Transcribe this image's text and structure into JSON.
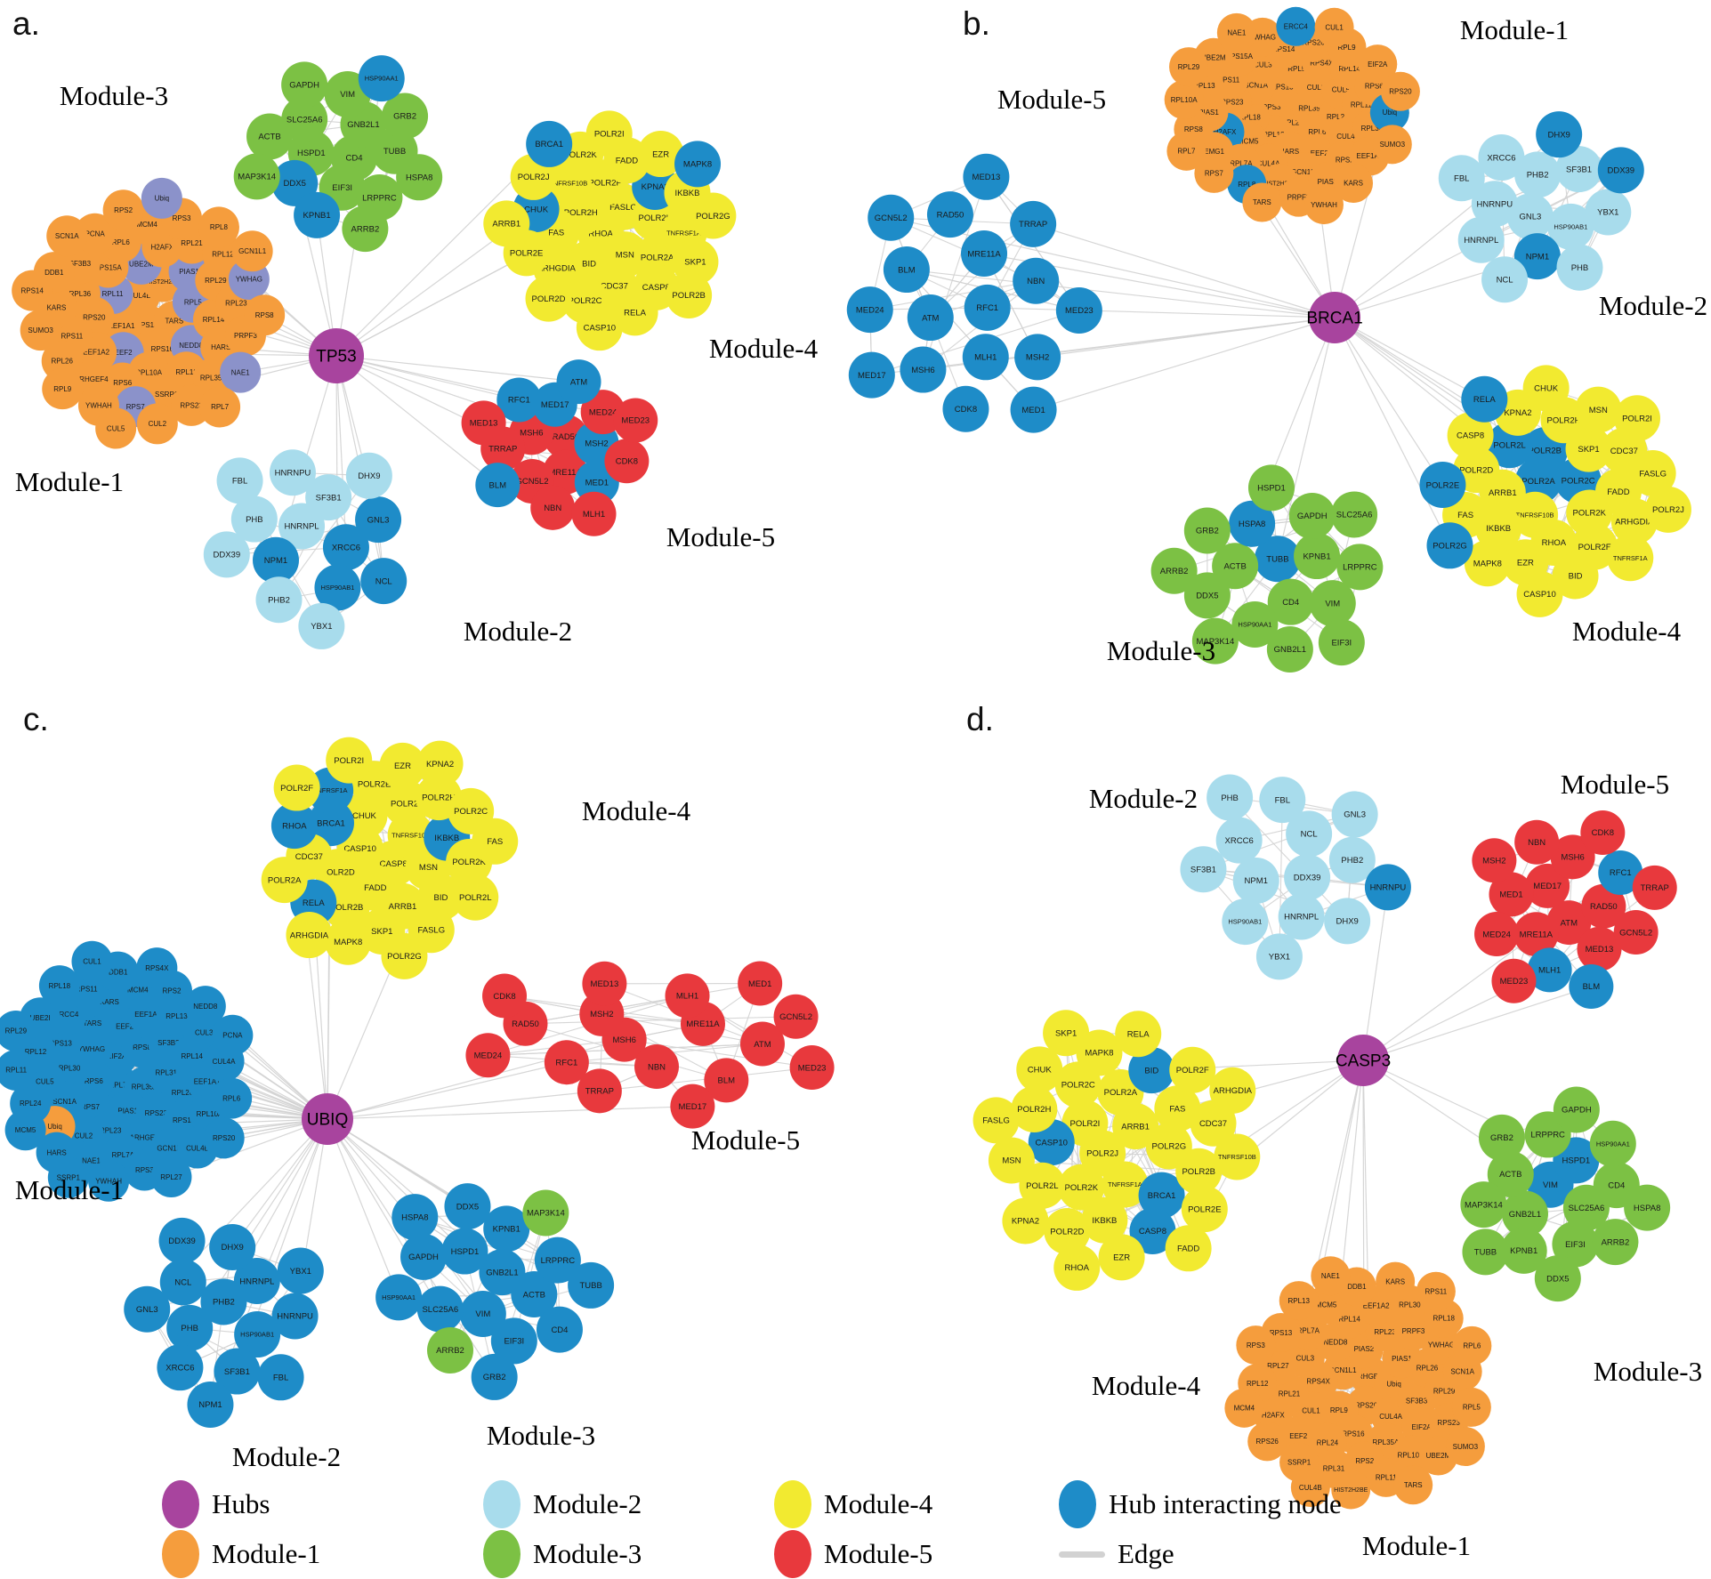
{
  "figure_title": "Hub gene interaction network modules",
  "colors": {
    "hub": "#a8449e",
    "module1": "#f59d3d",
    "module2": "#a8dcec",
    "module3": "#7cc144",
    "module4": "#f2ea30",
    "module5": "#e8393d",
    "hub_interacting": "#1e8cc8",
    "slate": "#8b92ca",
    "edge": "#d2d2d2"
  },
  "legend": {
    "items": [
      {
        "label": "Hubs",
        "key": "hub"
      },
      {
        "label": "Module-1",
        "key": "module1"
      },
      {
        "label": "Module-2",
        "key": "module2"
      },
      {
        "label": "Module-3",
        "key": "module3"
      },
      {
        "label": "Module-4",
        "key": "module4"
      },
      {
        "label": "Module-5",
        "key": "module5"
      },
      {
        "label": "Hub interacting node",
        "key": "hub_interacting"
      },
      {
        "label": "Edge",
        "key": "edge"
      }
    ]
  },
  "panels": {
    "a": {
      "letter": "a.",
      "hub": "TP53",
      "modules": [
        {
          "id": "module-3",
          "label": "Module-3",
          "color": "module3",
          "nodes": [
            "CD4",
            "HSPD1",
            "GNB2L1",
            "EIF3I",
            "SLC25A6",
            "TUBB",
            "DDX5|hub_interacting",
            "VIM",
            "LRPPRC",
            "ACTB",
            "GRB2",
            "KPNB1|hub_interacting",
            "GAPDH",
            "HSPA8",
            "MAP3K14",
            "HSP90AA1|hub_interacting",
            "ARRB2"
          ]
        },
        {
          "id": "module-1",
          "label": "Module-1",
          "color": "module1",
          "nodes": [
            "RPS13",
            "CUL4B",
            "TARS",
            "EEF1A1",
            "HIST2H2BE",
            "RPS16",
            "RPL11|slate",
            "RPL5|slate",
            "EEF2|slate",
            "UBE2M|slate",
            "NEDD8|slate",
            "RPS20",
            "PIAS1|slate",
            "RPL10A",
            "RPS15A",
            "RPL14",
            "EEF1A2",
            "H2AFX",
            "RPL13",
            "RPL36",
            "RPL29",
            "RPS6",
            "RPL6",
            "HARS",
            "RPS11",
            "RPL21",
            "SSRP1",
            "SF3B3",
            "RPL23",
            "ARHGEF4",
            "MCM4",
            "RPL35A",
            "KARS",
            "RPL12",
            "RPS7|slate",
            "PCNA",
            "PRPF3",
            "RPL26",
            "RPS3",
            "RPS23",
            "DDB1",
            "YWHAG|slate",
            "YWHAH",
            "RPS2",
            "NAE1|slate",
            "SUMO3",
            "RPL8",
            "CUL2",
            "SCN1A",
            "RPS8",
            "RPL9",
            "Ubiq|slate",
            "RPL7",
            "RPS14",
            "GCN1L1",
            "CUL5"
          ]
        },
        {
          "id": "module-4",
          "label": "Module-4",
          "color": "module4",
          "nodes": [
            "RHOA",
            "FASLG",
            "MSN",
            "POLR2H",
            "POLR2L",
            "BID",
            "POLR2F",
            "POLR2A",
            "FAS",
            "KPNA2|hub_interacting",
            "CDC37",
            "TNFRSF10B",
            "TNFRSF1A",
            "ARHGDIA",
            "FADD",
            "CASP8",
            "CHUK|hub_interacting",
            "IKBKB",
            "POLR2C",
            "POLR2K",
            "SKP1",
            "POLR2E",
            "EZR",
            "RELA",
            "POLR2J",
            "POLR2G",
            "POLR2D",
            "POLR2I",
            "POLR2B",
            "ARRB1",
            "MAPK8|hub_interacting",
            "CASP10",
            "BRCA1|hub_interacting"
          ]
        },
        {
          "id": "module-2",
          "label": "Module-2",
          "color": "module2",
          "nodes": [
            "HNRNPL",
            "XRCC6|hub_interacting",
            "NPM1|hub_interacting",
            "SF3B1",
            "HSP90AB1|hub_interacting",
            "PHB",
            "GNL3|hub_interacting",
            "PHB2",
            "HNRNPU",
            "NCL|hub_interacting",
            "DDX39",
            "DHX9",
            "YBX1",
            "FBL"
          ]
        },
        {
          "id": "module-5",
          "label": "Module-5",
          "color": "module5",
          "nodes": [
            "RAD50",
            "MRE11A",
            "MSH6",
            "MSH2|hub_interacting",
            "GCN5L2",
            "MED17|hub_interacting",
            "MED1|hub_interacting",
            "TRRAP",
            "MED24",
            "NBN",
            "RFC1|hub_interacting",
            "CDK8",
            "BLM|hub_interacting",
            "ATM|hub_interacting",
            "MLH1",
            "MED13",
            "MED23"
          ]
        }
      ]
    },
    "b": {
      "letter": "b.",
      "hub": "BRCA1",
      "modules": [
        {
          "id": "module-5",
          "label": "Module-5",
          "color": "hub_interacting",
          "nodes": [
            "RFC1",
            "ATM",
            "MRE11A",
            "MLH1",
            "BLM",
            "NBN",
            "MSH6",
            "RAD50",
            "MSH2",
            "MED24",
            "TRRAP",
            "CDK8",
            "GCN5L2",
            "MED23",
            "MED17",
            "MED13",
            "MED1"
          ]
        },
        {
          "id": "module-1",
          "label": "Module-1",
          "color": "module1",
          "nodes": [
            "RPL23",
            "RPS3",
            "RPL35A",
            "RPL12",
            "RPS13",
            "RPL6",
            "RPL18",
            "CUL2",
            "HARS",
            "SCN1A",
            "RPL21",
            "MCM5",
            "RPL5",
            "EEF2",
            "RPS23",
            "CUL5",
            "CUL4A",
            "CUL3",
            "CUL4B",
            "H2AFX|hub_interacting",
            "RPS4X",
            "GCN1L1",
            "RPS11",
            "RPL11",
            "RPL7A",
            "RPS14",
            "RPS2",
            "PIAS1",
            "RPL14",
            "HIST2H2BE",
            "RPS15A",
            "RPL30",
            "EMG1",
            "RPS26",
            "PIAS2",
            "RPL13",
            "RPS6",
            "RPL8|hub_interacting",
            "YWHAG",
            "EEF1A1",
            "RPS8",
            "RPL9",
            "PRPF3",
            "UBE2M",
            "Ubiq|hub_interacting",
            "RPS7",
            "ERCC4|hub_interacting",
            "KARS",
            "RPL10A",
            "EIF2A",
            "TARS",
            "NAE1",
            "SUMO3",
            "RPL7",
            "CUL1",
            "YWHAH",
            "RPL29",
            "RPS20"
          ]
        },
        {
          "id": "module-2",
          "label": "Module-2",
          "color": "module2",
          "nodes": [
            "GNL3",
            "PHB2",
            "HSP90AB1",
            "HNRNPU",
            "SF3B1",
            "NPM1|hub_interacting",
            "XRCC6",
            "YBX1",
            "HNRNPL",
            "DHX9|hub_interacting",
            "PHB",
            "FBL",
            "DDX39|hub_interacting",
            "NCL"
          ]
        },
        {
          "id": "module-4",
          "label": "Module-4",
          "color": "module4",
          "nodes": [
            "POLR2A|hub_interacting",
            "POLR2C|hub_interacting",
            "TNFRSF10B",
            "POLR2B|hub_interacting",
            "POLR2K",
            "ARRB1",
            "SKP1",
            "RHOA",
            "POLR2L|hub_interacting",
            "FADD",
            "IKBKB",
            "POLR2H",
            "POLR2F",
            "POLR2D",
            "CDC37",
            "EZR",
            "KPNA2",
            "ARHGDIA",
            "FAS",
            "MSN",
            "BID",
            "CASP8",
            "FASLG",
            "MAPK8",
            "CHUK",
            "TNFRSF1A",
            "POLR2E|hub_interacting",
            "POLR2I",
            "CASP10",
            "RELA|hub_interacting",
            "POLR2J",
            "POLR2G|hub_interacting"
          ]
        },
        {
          "id": "module-3",
          "label": "Module-3",
          "color": "module3",
          "nodes": [
            "TUBB|hub_interacting",
            "CD4",
            "ACTB",
            "KPNB1",
            "HSP90AA1",
            "HSPA8|hub_interacting",
            "VIM",
            "DDX5",
            "GAPDH",
            "GNB2L1",
            "GRB2",
            "LRPPRC",
            "MAP3K14",
            "HSPD1",
            "EIF3I",
            "ARRB2",
            "SLC25A6"
          ]
        }
      ]
    },
    "c": {
      "letter": "c.",
      "hub": "UBIQ",
      "modules": [
        {
          "id": "module-4",
          "label": "Module-4",
          "color": "module4",
          "nodes": [
            "CASP8",
            "CASP10",
            "TNFRSF10B",
            "FADD",
            "CHUK",
            "MSN",
            "POLR2D",
            "POLR2J",
            "ARRB1",
            "BRCA1|hub_interacting",
            "IKBKB|hub_interacting",
            "POLR2B",
            "POLR2E",
            "BID",
            "CDC37",
            "POLR2H",
            "SKP1",
            "TNFRSF1A|hub_interacting",
            "POLR2K",
            "RELA|hub_interacting",
            "EZR",
            "FASLG",
            "RHOA|hub_interacting",
            "POLR2C",
            "MAPK8",
            "POLR2I",
            "POLR2L",
            "POLR2A",
            "KPNA2",
            "POLR2G",
            "POLR2F",
            "FAS",
            "ARHGDIA"
          ]
        },
        {
          "id": "module-1",
          "label": "Module-1",
          "color": "hub_interacting",
          "nodes": [
            "RPL7",
            "EIF2A",
            "RPL35A",
            "RPS6",
            "RPS8",
            "PIAS1",
            "YWHAG",
            "RPL31",
            "RPS7",
            "EEF2",
            "RPS23",
            "RPL30",
            "SF3B3",
            "RPL23",
            "TARS",
            "RPL26",
            "SCN1A",
            "EEF1A2",
            "ARHGEF4",
            "RPS13",
            "RPL14",
            "CUL2",
            "KARS",
            "RPS16",
            "CUL5",
            "RPL13",
            "RPL7A",
            "ERCC4",
            "EEF1A1",
            "Ubiq|module1",
            "MCM4",
            "GCN1L1",
            "RPL12",
            "CUL3",
            "NAE1",
            "RPS11",
            "RPL10A",
            "RPL24",
            "RPS2",
            "RPS3",
            "UBE2I",
            "CUL4A",
            "HARS",
            "DDB1",
            "CUL4B",
            "RPL11",
            "NEDD8",
            "YWHAH",
            "RPL18",
            "RPL6",
            "MCM5",
            "RPS4X",
            "RPL27",
            "RPL29",
            "PCNA",
            "SSRP1",
            "CUL1",
            "RPS20"
          ]
        },
        {
          "id": "module-5",
          "label": "Module-5",
          "color": "module5",
          "nodes": [
            "MSH6",
            "MRE11A",
            "NBN",
            "MSH2",
            "ATM",
            "RFC1",
            "MLH1",
            "BLM",
            "RAD50",
            "GCN5L2",
            "TRRAP",
            "MED13",
            "MED23",
            "MED24",
            "MED1",
            "MED17",
            "CDK8"
          ]
        },
        {
          "id": "module-2",
          "label": "Module-2",
          "color": "hub_interacting",
          "nodes": [
            "PHB2",
            "HSP90AB1",
            "PHB",
            "HNRNPL",
            "SF3B1",
            "NCL",
            "HNRNPU",
            "XRCC6",
            "DHX9",
            "FBL",
            "GNL3",
            "YBX1",
            "NPM1",
            "DDX39"
          ]
        },
        {
          "id": "module-3",
          "label": "Module-3",
          "color": "hub_interacting",
          "nodes": [
            "GNB2L1",
            "VIM",
            "HSPD1",
            "ACTB",
            "SLC25A6",
            "KPNB1",
            "EIF3I",
            "GAPDH",
            "LRPPRC",
            "ARRB2|module3",
            "DDX5",
            "CD4",
            "HSP90AA1",
            "MAP3K14|module3",
            "GRB2",
            "HSPA8",
            "TUBB"
          ]
        }
      ]
    },
    "d": {
      "letter": "d.",
      "hub": "CASP3",
      "modules": [
        {
          "id": "module-2",
          "label": "Module-2",
          "color": "module2",
          "nodes": [
            "DDX39",
            "NPM1",
            "NCL",
            "HNRNPL",
            "XRCC6",
            "PHB2",
            "HSP90AB1",
            "FBL",
            "DHX9",
            "SF3B1",
            "GNL3",
            "YBX1",
            "PHB",
            "HNRNPU|hub_interacting"
          ]
        },
        {
          "id": "module-5",
          "label": "Module-5",
          "color": "module5",
          "nodes": [
            "ATM",
            "MED17",
            "RAD50",
            "MRE11A",
            "MSH6",
            "MED13",
            "MED1",
            "RFC1|hub_interacting",
            "MLH1|hub_interacting",
            "NBN",
            "GCN5L2",
            "MED24",
            "CDK8",
            "BLM|hub_interacting",
            "MSH2",
            "TRRAP",
            "MED23"
          ]
        },
        {
          "id": "module-4",
          "label": "Module-4",
          "color": "module4",
          "nodes": [
            "POLR2J",
            "ARRB1",
            "TNFRSF1A",
            "POLR2I",
            "POLR2G",
            "POLR2K",
            "POLR2A",
            "BRCA1|hub_interacting",
            "CASP10|hub_interacting",
            "FAS",
            "IKBKB",
            "POLR2C",
            "POLR2B",
            "POLR2L",
            "BID|hub_interacting",
            "CASP8|hub_interacting",
            "POLR2H",
            "CDC37",
            "POLR2D",
            "MAPK8",
            "POLR2E",
            "MSN",
            "POLR2F",
            "EZR",
            "CHUK",
            "TNFRSF10B",
            "KPNA2",
            "RELA",
            "FADD",
            "FASLG",
            "ARHGDIA",
            "RHOA",
            "SKP1"
          ]
        },
        {
          "id": "module-3",
          "label": "Module-3",
          "color": "module3",
          "nodes": [
            "VIM|hub_interacting",
            "SLC25A6",
            "GNB2L1",
            "HSPD1|hub_interacting",
            "EIF3I",
            "ACTB",
            "CD4",
            "KPNB1",
            "LRPPRC",
            "ARRB2",
            "MAP3K14",
            "HSP90AA1",
            "DDX5",
            "GRB2",
            "HSPA8",
            "TUBB",
            "GAPDH"
          ]
        },
        {
          "id": "module-1",
          "label": "Module-1",
          "color": "module1",
          "nodes": [
            "ARHGEF4",
            "RPS20",
            "GCN1L1",
            "Ubiq",
            "RPL9",
            "PIAS2",
            "CUL4A",
            "RPS4X",
            "PIAS1",
            "RPS16",
            "NEDD8",
            "SF3B3",
            "CUL1",
            "RPL23",
            "RPL35A",
            "CUL3",
            "RPL26",
            "RPL24",
            "RPL14",
            "EIF2A",
            "RPL21",
            "PRPF3",
            "RPS2",
            "RPL7A",
            "RPL29",
            "EEF2",
            "EEF1A2",
            "RPL10A",
            "RPL27",
            "YWHAG",
            "RPL31",
            "MCM5",
            "RPS23",
            "H2AFX",
            "RPL30",
            "RPL11",
            "RPS13",
            "SCN1A",
            "SSRP1",
            "DDB1",
            "UBE2M",
            "RPL12",
            "RPL18",
            "HIST2H2BE",
            "RPL13",
            "RPL5",
            "RPS26",
            "KARS",
            "TARS",
            "RPS3",
            "RPL6",
            "CUL4B",
            "NAE1",
            "SUMO3",
            "MCM4",
            "RPS11"
          ]
        }
      ]
    }
  }
}
